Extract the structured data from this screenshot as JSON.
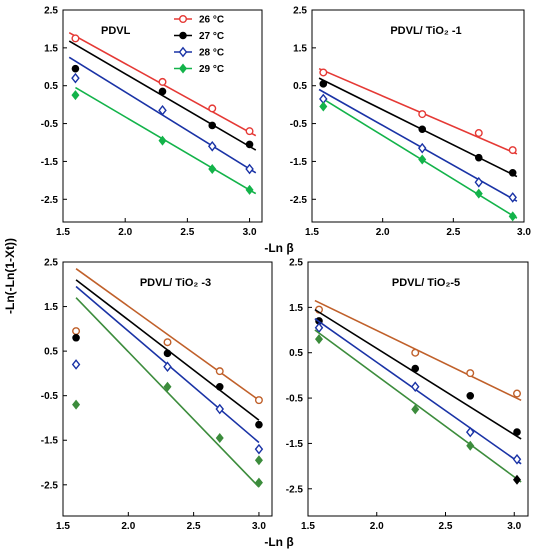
{
  "figure": {
    "xlabel_top": "-Ln β",
    "xlabel_bottom": "-Ln β",
    "ylabel": "-Ln(-Ln(1-Xt))"
  },
  "legend": {
    "entries": [
      {
        "label": "26 °C",
        "color": "#e53935",
        "marker": "circle-open"
      },
      {
        "label": "27 °C",
        "color": "#000000",
        "marker": "circle-filled"
      },
      {
        "label": "28 °C",
        "color": "#1a33a6",
        "marker": "diamond-open"
      },
      {
        "label": "29 °C",
        "color": "#13b34a",
        "marker": "diamond-filled"
      }
    ]
  },
  "chart_data": [
    {
      "type": "scatter",
      "title": "PDVL",
      "xlim": [
        1.5,
        3.1
      ],
      "ylim": [
        -3.1,
        2.5
      ],
      "xticks": [
        "1.5",
        "2.0",
        "2.5",
        "3.0"
      ],
      "yticks": [
        "2.5",
        "1.5",
        "0.5",
        "-0.5",
        "-1.5",
        "-2.5"
      ],
      "series": [
        {
          "name": "26 °C",
          "color": "#e53935",
          "marker": "circle-open",
          "x": [
            1.6,
            2.3,
            2.7,
            3.0
          ],
          "y": [
            1.75,
            0.6,
            -0.1,
            -0.7
          ],
          "fit": [
            [
              1.55,
              1.9
            ],
            [
              3.05,
              -0.82
            ]
          ]
        },
        {
          "name": "27 °C",
          "color": "#000000",
          "marker": "circle-filled",
          "x": [
            1.6,
            2.3,
            2.7,
            3.0
          ],
          "y": [
            0.95,
            0.35,
            -0.55,
            -1.05
          ],
          "fit": [
            [
              1.55,
              1.68
            ],
            [
              3.05,
              -1.2
            ]
          ]
        },
        {
          "name": "28 °C",
          "color": "#1a33a6",
          "marker": "diamond-open",
          "x": [
            1.6,
            2.3,
            2.7,
            3.0
          ],
          "y": [
            0.7,
            -0.15,
            -1.1,
            -1.7
          ],
          "fit": [
            [
              1.55,
              1.25
            ],
            [
              3.05,
              -1.8
            ]
          ]
        },
        {
          "name": "29 °C",
          "color": "#13b34a",
          "marker": "diamond-filled",
          "x": [
            1.6,
            2.3,
            2.7,
            3.0
          ],
          "y": [
            0.25,
            -0.95,
            -1.7,
            -2.25
          ],
          "fit": [
            [
              1.6,
              0.45
            ],
            [
              3.05,
              -2.35
            ]
          ]
        }
      ]
    },
    {
      "type": "scatter",
      "title": "PDVL/ TiO₂ -1",
      "xlim": [
        1.5,
        3.0
      ],
      "ylim": [
        -3.1,
        2.5
      ],
      "xticks": [
        "1.5",
        "2.0",
        "2.5",
        "3.0"
      ],
      "yticks": [
        "2.5",
        "1.5",
        "0.5",
        "-0.5",
        "-1.5",
        "-2.5"
      ],
      "series": [
        {
          "name": "26 °C",
          "color": "#e53935",
          "marker": "circle-open",
          "x": [
            1.58,
            2.28,
            2.68,
            2.92
          ],
          "y": [
            0.85,
            -0.25,
            -0.75,
            -1.2
          ],
          "fit": [
            [
              1.55,
              0.95
            ],
            [
              2.95,
              -1.3
            ]
          ]
        },
        {
          "name": "27 °C",
          "color": "#000000",
          "marker": "circle-filled",
          "x": [
            1.58,
            2.28,
            2.68,
            2.92
          ],
          "y": [
            0.55,
            -0.65,
            -1.4,
            -1.8
          ],
          "fit": [
            [
              1.55,
              0.7
            ],
            [
              2.95,
              -1.9
            ]
          ]
        },
        {
          "name": "28 °C",
          "color": "#1a33a6",
          "marker": "diamond-open",
          "x": [
            1.58,
            2.28,
            2.68,
            2.92
          ],
          "y": [
            0.15,
            -1.15,
            -2.05,
            -2.45
          ],
          "fit": [
            [
              1.55,
              0.4
            ],
            [
              2.95,
              -2.55
            ]
          ]
        },
        {
          "name": "29 °C",
          "color": "#13b34a",
          "marker": "diamond-filled",
          "x": [
            1.58,
            2.28,
            2.68,
            2.92
          ],
          "y": [
            -0.05,
            -1.45,
            -2.35,
            -2.95
          ],
          "fit": [
            [
              1.6,
              0.1
            ],
            [
              2.95,
              -3.0
            ]
          ]
        }
      ]
    },
    {
      "type": "scatter",
      "title": "PDVL/ TiO₂ -3",
      "xlim": [
        1.5,
        3.1
      ],
      "ylim": [
        -3.2,
        2.5
      ],
      "xticks": [
        "1.5",
        "2.0",
        "2.5",
        "3.0"
      ],
      "yticks": [
        "2.5",
        "1.5",
        "0.5",
        "-0.5",
        "-1.5",
        "-2.5"
      ],
      "series": [
        {
          "name": "26 °C",
          "color": "#c0602a",
          "marker": "circle-open",
          "x": [
            1.6,
            2.3,
            2.7,
            3.0
          ],
          "y": [
            0.95,
            0.7,
            0.05,
            -0.6
          ],
          "fit": [
            [
              1.6,
              2.35
            ],
            [
              3.0,
              -0.6
            ]
          ]
        },
        {
          "name": "27 °C",
          "color": "#000000",
          "marker": "circle-filled",
          "x": [
            1.6,
            2.3,
            2.7,
            3.0
          ],
          "y": [
            0.8,
            0.45,
            -0.3,
            -1.15
          ],
          "fit": [
            [
              1.6,
              2.1
            ],
            [
              3.0,
              -1.05
            ]
          ]
        },
        {
          "name": "28 °C",
          "color": "#1a33a6",
          "marker": "diamond-open",
          "x": [
            1.6,
            2.3,
            2.7,
            3.0
          ],
          "y": [
            0.2,
            0.15,
            -0.8,
            -1.7
          ],
          "fit": [
            [
              1.6,
              1.95
            ],
            [
              3.0,
              -1.55
            ]
          ]
        },
        {
          "name": "29 °C",
          "color": "#3c8c3c",
          "marker": "diamond-filled",
          "x": [
            1.6,
            2.3,
            2.7,
            3.0
          ],
          "y": [
            -0.7,
            -0.3,
            -1.45,
            -2.45
          ],
          "fit": [
            [
              1.6,
              1.7
            ],
            [
              3.0,
              -2.55
            ]
          ]
        }
      ],
      "extra_points": [
        {
          "color": "#3c8c3c",
          "marker": "diamond-filled",
          "x": 3.0,
          "y": -1.95
        }
      ]
    },
    {
      "type": "scatter",
      "title": "PDVL/ TiO₂-5",
      "xlim": [
        1.5,
        3.1
      ],
      "ylim": [
        -3.1,
        2.5
      ],
      "xticks": [
        "1.5",
        "2.0",
        "2.5",
        "3.0"
      ],
      "yticks": [
        "2.5",
        "1.5",
        "0.5",
        "-0.5",
        "-1.5",
        "-2.5"
      ],
      "series": [
        {
          "name": "26 °C",
          "color": "#c0602a",
          "marker": "circle-open",
          "x": [
            1.58,
            2.28,
            2.68,
            3.02
          ],
          "y": [
            1.45,
            0.5,
            0.05,
            -0.4
          ],
          "fit": [
            [
              1.55,
              1.65
            ],
            [
              3.05,
              -0.55
            ]
          ]
        },
        {
          "name": "27 °C",
          "color": "#000000",
          "marker": "circle-filled",
          "x": [
            1.58,
            2.28,
            2.68,
            3.02
          ],
          "y": [
            1.2,
            0.15,
            -0.45,
            -1.25
          ],
          "fit": [
            [
              1.55,
              1.45
            ],
            [
              3.05,
              -1.4
            ]
          ]
        },
        {
          "name": "28 °C",
          "color": "#1a33a6",
          "marker": "diamond-open",
          "x": [
            1.58,
            2.28,
            2.68,
            3.02
          ],
          "y": [
            1.05,
            -0.25,
            -1.25,
            -1.85
          ],
          "fit": [
            [
              1.55,
              1.25
            ],
            [
              3.05,
              -1.95
            ]
          ]
        },
        {
          "name": "29 °C",
          "color": "#3c8c3c",
          "marker": "diamond-filled",
          "x": [
            1.58,
            2.28,
            2.68
          ],
          "y": [
            0.8,
            -0.75,
            -1.55
          ],
          "fit": [
            [
              1.55,
              1.0
            ],
            [
              3.05,
              -2.35
            ]
          ]
        }
      ],
      "extra_points": [
        {
          "color": "#000000",
          "marker": "diamond-filled",
          "x": 3.02,
          "y": -2.3
        }
      ]
    }
  ]
}
